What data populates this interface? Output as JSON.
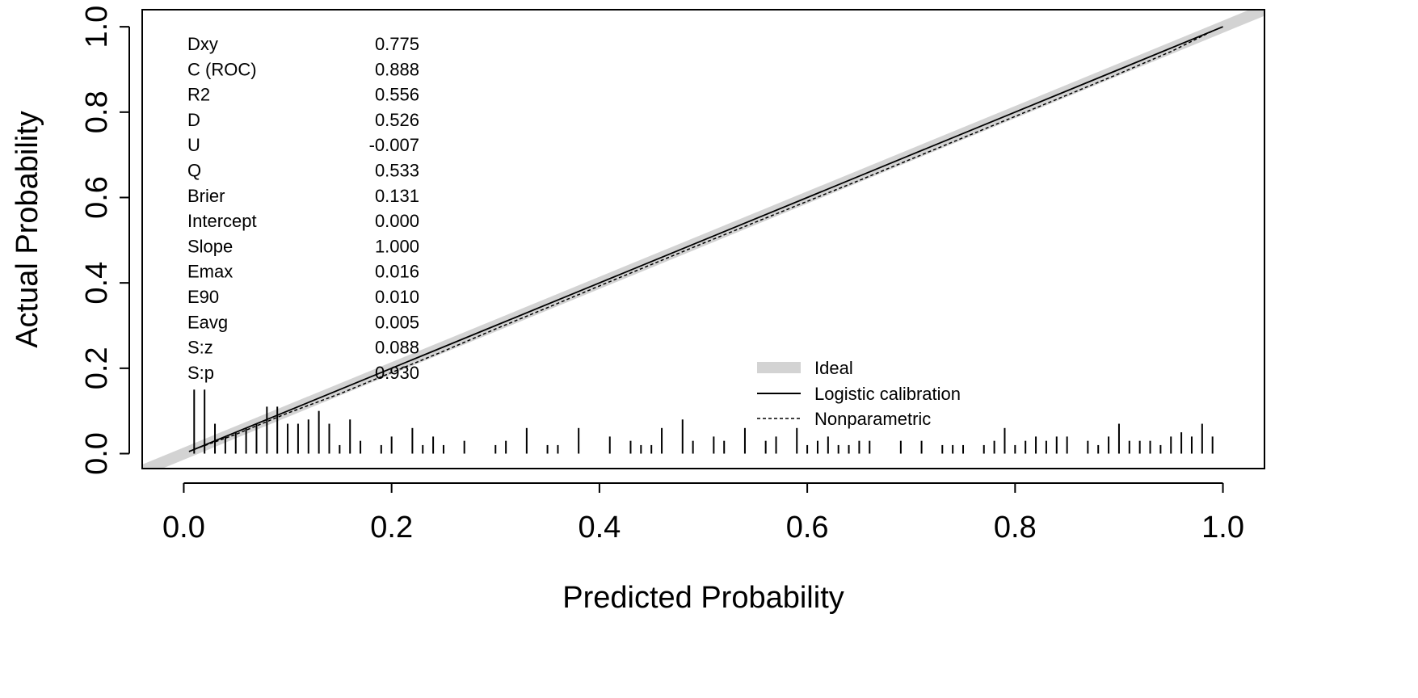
{
  "chart_data": {
    "type": "line",
    "xlabel": "Predicted Probability",
    "ylabel": "Actual Probability",
    "xlim": [
      -0.04,
      1.04
    ],
    "ylim": [
      -0.035,
      1.04
    ],
    "x_ticks": [
      0.0,
      0.2,
      0.4,
      0.6,
      0.8,
      1.0
    ],
    "y_ticks": [
      0.0,
      0.2,
      0.4,
      0.6,
      0.8,
      1.0
    ],
    "x_tick_labels": [
      "0.0",
      "0.2",
      "0.4",
      "0.6",
      "0.8",
      "1.0"
    ],
    "y_tick_labels": [
      "0.0",
      "0.2",
      "0.4",
      "0.6",
      "0.8",
      "1.0"
    ],
    "grid": false,
    "legend_position": "bottom-right",
    "series": [
      {
        "name": "Ideal",
        "style": "thick-gray",
        "color": "#d3d3d3",
        "x": [
          -0.04,
          1.04
        ],
        "y": [
          -0.04,
          1.04
        ]
      },
      {
        "name": "Logistic calibration",
        "style": "solid",
        "color": "#000000",
        "x": [
          0.005,
          0.1,
          0.2,
          0.3,
          0.4,
          0.5,
          0.6,
          0.7,
          0.8,
          0.9,
          1.0
        ],
        "y": [
          0.005,
          0.1,
          0.2,
          0.3,
          0.4,
          0.5,
          0.6,
          0.7,
          0.8,
          0.9,
          1.0
        ]
      },
      {
        "name": "Nonparametric",
        "style": "dashed",
        "color": "#000000",
        "x": [
          0.01,
          0.05,
          0.1,
          0.15,
          0.2,
          0.25,
          0.3,
          0.35,
          0.4,
          0.45,
          0.5,
          0.55,
          0.6,
          0.65,
          0.7,
          0.75,
          0.8,
          0.85,
          0.9,
          0.95,
          0.99
        ],
        "y": [
          0.01,
          0.045,
          0.095,
          0.14,
          0.19,
          0.24,
          0.292,
          0.342,
          0.393,
          0.443,
          0.493,
          0.542,
          0.591,
          0.64,
          0.69,
          0.74,
          0.79,
          0.84,
          0.89,
          0.942,
          0.99
        ]
      }
    ],
    "stats": [
      {
        "label": "Dxy",
        "value": "0.775"
      },
      {
        "label": "C (ROC)",
        "value": "0.888"
      },
      {
        "label": "R2",
        "value": "0.556"
      },
      {
        "label": "D",
        "value": "0.526"
      },
      {
        "label": "U",
        "value": "-0.007"
      },
      {
        "label": "Q",
        "value": "0.533"
      },
      {
        "label": "Brier",
        "value": "0.131"
      },
      {
        "label": "Intercept",
        "value": "0.000"
      },
      {
        "label": "Slope",
        "value": "1.000"
      },
      {
        "label": "Emax",
        "value": "0.016"
      },
      {
        "label": "E90",
        "value": "0.010"
      },
      {
        "label": "Eavg",
        "value": "0.005"
      },
      {
        "label": "S:z",
        "value": "0.088"
      },
      {
        "label": "S:p",
        "value": "0.930"
      }
    ],
    "rug": {
      "x": [
        0.01,
        0.02,
        0.03,
        0.04,
        0.05,
        0.06,
        0.07,
        0.08,
        0.09,
        0.1,
        0.11,
        0.12,
        0.13,
        0.14,
        0.15,
        0.16,
        0.17,
        0.19,
        0.2,
        0.22,
        0.23,
        0.24,
        0.25,
        0.27,
        0.3,
        0.31,
        0.33,
        0.35,
        0.36,
        0.38,
        0.41,
        0.43,
        0.44,
        0.45,
        0.46,
        0.48,
        0.49,
        0.51,
        0.52,
        0.54,
        0.56,
        0.57,
        0.59,
        0.6,
        0.61,
        0.62,
        0.63,
        0.64,
        0.65,
        0.66,
        0.69,
        0.71,
        0.73,
        0.74,
        0.75,
        0.77,
        0.78,
        0.79,
        0.8,
        0.81,
        0.82,
        0.83,
        0.84,
        0.85,
        0.87,
        0.88,
        0.89,
        0.9,
        0.91,
        0.92,
        0.93,
        0.94,
        0.95,
        0.96,
        0.97,
        0.98,
        0.99
      ],
      "h": [
        0.15,
        0.15,
        0.07,
        0.04,
        0.05,
        0.06,
        0.07,
        0.11,
        0.11,
        0.07,
        0.07,
        0.08,
        0.1,
        0.07,
        0.02,
        0.08,
        0.03,
        0.02,
        0.04,
        0.06,
        0.02,
        0.04,
        0.02,
        0.03,
        0.02,
        0.03,
        0.06,
        0.02,
        0.02,
        0.06,
        0.04,
        0.03,
        0.02,
        0.02,
        0.06,
        0.08,
        0.03,
        0.04,
        0.03,
        0.06,
        0.03,
        0.04,
        0.06,
        0.02,
        0.03,
        0.04,
        0.02,
        0.02,
        0.03,
        0.03,
        0.03,
        0.03,
        0.02,
        0.02,
        0.02,
        0.02,
        0.03,
        0.06,
        0.02,
        0.03,
        0.04,
        0.03,
        0.04,
        0.04,
        0.03,
        0.02,
        0.04,
        0.07,
        0.03,
        0.03,
        0.03,
        0.02,
        0.04,
        0.05,
        0.04,
        0.07,
        0.04
      ]
    }
  }
}
